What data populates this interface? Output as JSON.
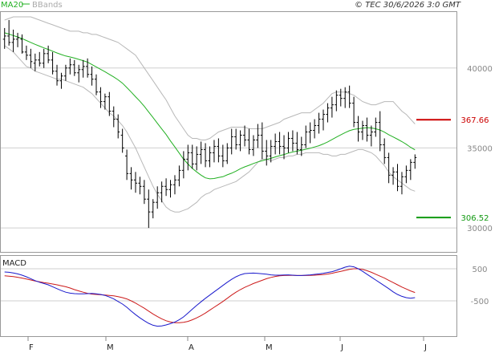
{
  "header": {
    "legend_ma": "MA20",
    "legend_bb": "BBands",
    "copyright": "© TEC 30/6/2026 3:0 GMT"
  },
  "macd_label": "MACD",
  "colors": {
    "ma": "#22b022",
    "bbands": "#b8b8b8",
    "bars": "#000000",
    "resistance": "#cc0000",
    "support": "#119911",
    "macd": "#1a1acc",
    "signal": "#cc1a1a",
    "grid": "#cfcfcf",
    "axis_label": "#666666"
  },
  "chart_data": [
    {
      "type": "ohlc",
      "x_ticks": [
        "F",
        "M",
        "A",
        "M",
        "J",
        "J"
      ],
      "y_ticks": [
        300.0,
        350.0,
        400.0
      ],
      "y_tick_labels": [
        "30000",
        "35000",
        "40000"
      ],
      "ylim": [
        285.0,
        435.0
      ],
      "levels": [
        {
          "label": "367.66",
          "value": 367.66,
          "kind": "resistance"
        },
        {
          "label": "306.52",
          "value": 306.52,
          "kind": "support"
        }
      ],
      "ohlc": [
        [
          418,
          425,
          412,
          420
        ],
        [
          420,
          430,
          414,
          416
        ],
        [
          416,
          424,
          410,
          418
        ],
        [
          418,
          422,
          413,
          419
        ],
        [
          418,
          421,
          409,
          410
        ],
        [
          410,
          414,
          405,
          408
        ],
        [
          408,
          412,
          400,
          404
        ],
        [
          403,
          409,
          398,
          405
        ],
        [
          405,
          410,
          401,
          403
        ],
        [
          403,
          412,
          400,
          409
        ],
        [
          409,
          414,
          403,
          405
        ],
        [
          405,
          410,
          396,
          398
        ],
        [
          398,
          402,
          389,
          392
        ],
        [
          392,
          397,
          387,
          395
        ],
        [
          395,
          402,
          392,
          400
        ],
        [
          400,
          406,
          396,
          402
        ],
        [
          402,
          405,
          395,
          397
        ],
        [
          397,
          402,
          391,
          399
        ],
        [
          399,
          405,
          394,
          401
        ],
        [
          401,
          406,
          394,
          396
        ],
        [
          396,
          401,
          389,
          393
        ],
        [
          393,
          396,
          383,
          385
        ],
        [
          385,
          388,
          375,
          379
        ],
        [
          379,
          384,
          374,
          382
        ],
        [
          382,
          385,
          370,
          373
        ],
        [
          373,
          376,
          363,
          368
        ],
        [
          368,
          371,
          356,
          360
        ],
        [
          358,
          362,
          347,
          350
        ],
        [
          345,
          349,
          330,
          334
        ],
        [
          334,
          338,
          324,
          330
        ],
        [
          330,
          335,
          322,
          328
        ],
        [
          328,
          332,
          321,
          326
        ],
        [
          326,
          330,
          315,
          318
        ],
        [
          318,
          324,
          300,
          310
        ],
        [
          310,
          318,
          306,
          316
        ],
        [
          316,
          326,
          312,
          322
        ],
        [
          322,
          329,
          316,
          326
        ],
        [
          326,
          331,
          320,
          324
        ],
        [
          324,
          330,
          319,
          327
        ],
        [
          327,
          333,
          321,
          330
        ],
        [
          330,
          339,
          326,
          336
        ],
        [
          336,
          348,
          331,
          343
        ],
        [
          343,
          352,
          336,
          347
        ],
        [
          347,
          352,
          337,
          340
        ],
        [
          340,
          351,
          336,
          346
        ],
        [
          346,
          354,
          340,
          349
        ],
        [
          349,
          353,
          338,
          342
        ],
        [
          342,
          351,
          338,
          347
        ],
        [
          347,
          355,
          341,
          351
        ],
        [
          351,
          356,
          341,
          345
        ],
        [
          345,
          352,
          338,
          342
        ],
        [
          342,
          353,
          340,
          350
        ],
        [
          350,
          362,
          346,
          357
        ],
        [
          357,
          362,
          349,
          352
        ],
        [
          352,
          361,
          348,
          358
        ],
        [
          358,
          364,
          351,
          355
        ],
        [
          355,
          362,
          346,
          349
        ],
        [
          349,
          358,
          345,
          355
        ],
        [
          355,
          365,
          350,
          358
        ],
        [
          358,
          366,
          343,
          348
        ],
        [
          348,
          355,
          339,
          345
        ],
        [
          345,
          355,
          341,
          351
        ],
        [
          351,
          359,
          346,
          354
        ],
        [
          354,
          360,
          346,
          351
        ],
        [
          351,
          358,
          343,
          350
        ],
        [
          350,
          360,
          347,
          356
        ],
        [
          356,
          361,
          348,
          353
        ],
        [
          353,
          360,
          346,
          349
        ],
        [
          349,
          357,
          345,
          352
        ],
        [
          352,
          364,
          350,
          360
        ],
        [
          360,
          366,
          353,
          361
        ],
        [
          361,
          368,
          356,
          364
        ],
        [
          364,
          372,
          359,
          368
        ],
        [
          368,
          374,
          361,
          371
        ],
        [
          371,
          378,
          366,
          375
        ],
        [
          375,
          382,
          369,
          377
        ],
        [
          377,
          386,
          373,
          383
        ],
        [
          383,
          387,
          376,
          381
        ],
        [
          381,
          388,
          375,
          385
        ],
        [
          385,
          389,
          375,
          378
        ],
        [
          378,
          382,
          363,
          366
        ],
        [
          366,
          370,
          354,
          360
        ],
        [
          360,
          367,
          355,
          364
        ],
        [
          364,
          369,
          354,
          358
        ],
        [
          358,
          364,
          351,
          360
        ],
        [
          360,
          369,
          357,
          366
        ],
        [
          366,
          373,
          348,
          352
        ],
        [
          352,
          356,
          340,
          344
        ],
        [
          344,
          347,
          328,
          333
        ],
        [
          333,
          338,
          327,
          335
        ],
        [
          335,
          340,
          323,
          326
        ],
        [
          326,
          335,
          321,
          332
        ],
        [
          332,
          339,
          328,
          336
        ],
        [
          336,
          343,
          330,
          341
        ],
        [
          341,
          346,
          337,
          344
        ]
      ],
      "ma20": [
        422.0,
        421.2,
        420.3,
        419.4,
        418.4,
        417.2,
        416.0,
        414.8,
        413.7,
        412.6,
        411.6,
        410.5,
        409.4,
        408.4,
        407.5,
        406.9,
        406.2,
        405.4,
        404.6,
        403.7,
        402.2,
        400.7,
        399.2,
        397.7,
        396.0,
        394.4,
        392.6,
        390.5,
        387.8,
        385.0,
        382.0,
        379.2,
        376.0,
        372.5,
        369.0,
        365.4,
        361.9,
        358.4,
        354.4,
        350.6,
        346.8,
        343.0,
        340.0,
        337.2,
        335.0,
        333.0,
        331.3,
        330.7,
        330.9,
        331.5,
        332.0,
        333.2,
        334.2,
        335.5,
        337.0,
        338.2,
        339.2,
        340.3,
        341.3,
        342.0,
        342.8,
        343.5,
        344.4,
        345.2,
        345.9,
        346.8,
        347.5,
        348.0,
        348.6,
        349.2,
        349.8,
        350.6,
        351.4,
        352.5,
        353.8,
        355.3,
        356.8,
        358.2,
        359.6,
        360.8,
        361.6,
        362.0,
        362.4,
        362.7,
        362.5,
        362.0,
        361.2,
        359.9,
        358.3,
        356.9,
        355.5,
        354.0,
        352.3,
        350.4,
        348.8
      ],
      "bb_upper": [
        430,
        431,
        432,
        432,
        432,
        432,
        432,
        431,
        430,
        429,
        428,
        427,
        426,
        425,
        424,
        423,
        423,
        423,
        422,
        422,
        421,
        421,
        420,
        419,
        418,
        417,
        416,
        414,
        412,
        410,
        408,
        404,
        400,
        396,
        392,
        388,
        384,
        380,
        375,
        370,
        366,
        362,
        358,
        356,
        356,
        355,
        355,
        356,
        358,
        360,
        361,
        362,
        363,
        363,
        363,
        363,
        362,
        362,
        362,
        362,
        363,
        364,
        365,
        366,
        368,
        369,
        370,
        371,
        372,
        372,
        372,
        374,
        376,
        378,
        381,
        384,
        385,
        385,
        385,
        384,
        383,
        381,
        379,
        378,
        377,
        377,
        378,
        379,
        379,
        379,
        376,
        373,
        371,
        368,
        365
      ],
      "bb_lower": [
        414,
        412,
        410,
        407,
        404,
        401,
        400,
        398,
        397,
        396,
        395,
        394,
        393,
        393,
        392,
        391,
        390,
        389,
        388,
        386,
        384,
        381,
        378,
        375,
        372,
        370,
        367,
        364,
        360,
        355,
        350,
        344,
        338,
        332,
        326,
        321,
        317,
        313,
        311,
        310,
        310,
        311,
        312,
        314,
        316,
        319,
        321,
        322,
        324,
        325,
        326,
        327,
        328,
        329,
        331,
        333,
        335,
        338,
        341,
        343,
        343,
        342,
        343,
        344,
        344,
        345,
        345,
        346,
        346,
        347,
        347,
        347,
        347,
        346,
        346,
        345,
        345,
        346,
        346,
        347,
        348,
        349,
        349,
        348,
        347,
        345,
        342,
        339,
        335,
        332,
        330,
        328,
        326,
        324,
        323
      ],
      "macd_series": {
        "ylim": [
          -1600,
          900
        ],
        "y_tick_labels": [
          "500",
          "-500"
        ],
        "macd": [
          400,
          390,
          370,
          340,
          300,
          250,
          190,
          130,
          80,
          40,
          0,
          -60,
          -120,
          -180,
          -230,
          -260,
          -275,
          -280,
          -280,
          -275,
          -270,
          -280,
          -300,
          -330,
          -380,
          -440,
          -520,
          -600,
          -700,
          -820,
          -930,
          -1030,
          -1120,
          -1200,
          -1260,
          -1290,
          -1280,
          -1250,
          -1210,
          -1160,
          -1090,
          -1000,
          -880,
          -760,
          -640,
          -530,
          -420,
          -320,
          -220,
          -120,
          -20,
          80,
          170,
          250,
          310,
          350,
          360,
          365,
          355,
          345,
          330,
          310,
          300,
          300,
          305,
          310,
          300,
          290,
          290,
          300,
          310,
          325,
          340,
          360,
          385,
          410,
          450,
          500,
          550,
          580,
          560,
          500,
          420,
          330,
          240,
          150,
          60,
          -30,
          -120,
          -220,
          -300,
          -360,
          -400,
          -420,
          -400
        ],
        "signal": [
          280,
          270,
          255,
          235,
          210,
          180,
          150,
          120,
          95,
          70,
          50,
          25,
          0,
          -30,
          -60,
          -100,
          -150,
          -190,
          -230,
          -265,
          -290,
          -300,
          -310,
          -320,
          -330,
          -345,
          -370,
          -400,
          -440,
          -500,
          -570,
          -650,
          -730,
          -820,
          -910,
          -990,
          -1060,
          -1120,
          -1160,
          -1180,
          -1180,
          -1170,
          -1140,
          -1090,
          -1030,
          -960,
          -880,
          -790,
          -700,
          -610,
          -520,
          -420,
          -320,
          -230,
          -150,
          -80,
          -20,
          40,
          90,
          140,
          190,
          230,
          260,
          280,
          290,
          295,
          295,
          290,
          290,
          290,
          295,
          300,
          310,
          320,
          335,
          360,
          390,
          420,
          450,
          480,
          500,
          500,
          480,
          440,
          390,
          330,
          270,
          210,
          140,
          70,
          0,
          -70,
          -130,
          -190,
          -240
        ]
      }
    }
  ]
}
